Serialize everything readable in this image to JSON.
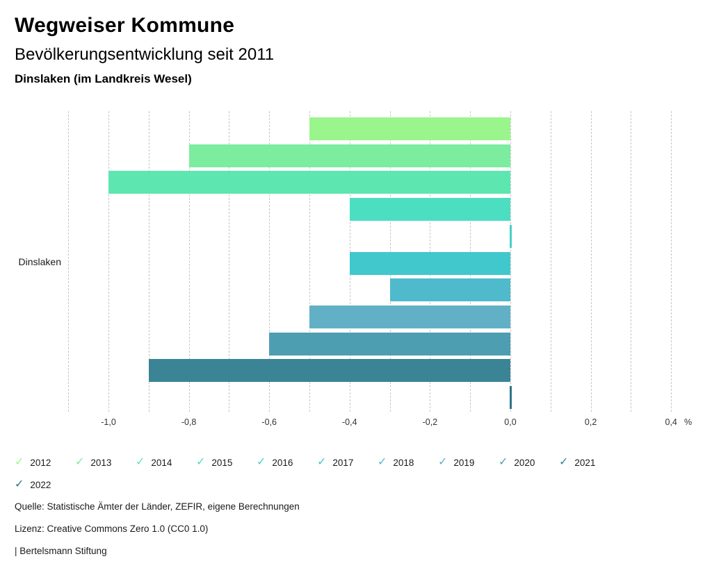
{
  "header": {
    "title": "Wegweiser Kommune",
    "subtitle": "Bevölkerungsentwicklung seit 2011",
    "location": "Dinslaken (im Landkreis Wesel)"
  },
  "chart_data": {
    "type": "bar",
    "orientation": "horizontal",
    "title": "Bevölkerungsentwicklung seit 2011",
    "group_label": "Dinslaken",
    "unit": "%",
    "categories": [
      "2012",
      "2013",
      "2014",
      "2015",
      "2016",
      "2017",
      "2018",
      "2019",
      "2020",
      "2021",
      "2022"
    ],
    "values": [
      -0.5,
      -0.8,
      -1.0,
      -0.4,
      0.0,
      -0.4,
      -0.3,
      -0.5,
      -0.6,
      -0.9,
      0.0
    ],
    "colors": [
      "#9bf58d",
      "#7cec9f",
      "#5ee6b0",
      "#4cdec0",
      "#46d1c8",
      "#41c8cd",
      "#4fbacc",
      "#61b0c6",
      "#4e9eb2",
      "#3a8496",
      "#2e7489"
    ],
    "xlim": [
      -1.1,
      0.42
    ],
    "grid": {
      "orientation": "vertical",
      "style": "dashed",
      "step": 0.1,
      "color": "#c6c6c6"
    },
    "ticks": [
      {
        "label": "-1,0",
        "value": -1.0
      },
      {
        "label": "-0,8",
        "value": -0.8
      },
      {
        "label": "-0,6",
        "value": -0.6
      },
      {
        "label": "-0,4",
        "value": -0.4
      },
      {
        "label": "-0,2",
        "value": -0.2
      },
      {
        "label": "0,0",
        "value": 0.0
      },
      {
        "label": "0,2",
        "value": 0.2
      },
      {
        "label": "0,4",
        "value": 0.4
      }
    ],
    "legend_position": "bottom"
  },
  "icons": {
    "check": "✓"
  },
  "footer": {
    "source": "Quelle: Statistische Ämter der Länder, ZEFIR, eigene Berechnungen",
    "license": "Lizenz: Creative Commons Zero 1.0 (CC0 1.0)",
    "attribution": "| Bertelsmann Stiftung"
  }
}
